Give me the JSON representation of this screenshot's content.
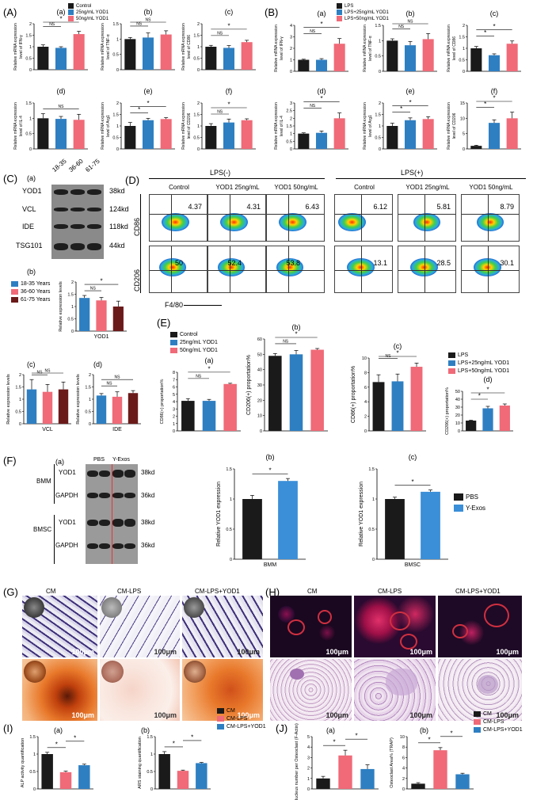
{
  "colors": {
    "black": "#1a1a1a",
    "blue": "#2e7fc2",
    "pink": "#f06a78",
    "maroon": "#6b1a1a",
    "blueLight": "#3a8fd8"
  },
  "panelA": {
    "label": "(A)",
    "legend": [
      "Control",
      "25ng/mL YOD1",
      "50ng/mL YOD1"
    ],
    "subs": [
      "(a)",
      "(b)",
      "(c)",
      "(d)",
      "(e)",
      "(f)"
    ],
    "ylabels": [
      "Relative mRNA expression level of IFN-γ",
      "Relative mRNA expression level of TNF-α",
      "Relative mRNA expression level of CD86",
      "Relative mRNA expression level of IL-4",
      "Relative mRNA expression level of Arg1",
      "Relative mRNA expression level of CD206"
    ]
  },
  "panelB": {
    "label": "(B)",
    "legend": [
      "LPS",
      "LPS+25ng/mL YOD1",
      "LPS+50ng/mL YOD1"
    ],
    "subs": [
      "(a)",
      "(b)",
      "(c)",
      "(d)",
      "(e)",
      "(f)"
    ],
    "ylabels": [
      "Relative mRNA expression level of IFN-γ",
      "Relative mRNA expression level of TNF-α",
      "Relative mRNA expression level of CD86",
      "Relative mRNA expression level of IL-4",
      "Relative mRNA expression level of Arg1",
      "Relative mRNA expression level of CD206"
    ]
  },
  "panelC": {
    "label": "(C)",
    "sub_a": "(a)",
    "sub_b": "(b)",
    "sub_c": "(c)",
    "sub_d": "(d)",
    "lanes": [
      "18-35",
      "36-60",
      "61-75"
    ],
    "proteins": [
      "YOD1",
      "VCL",
      "IDE",
      "TSG101"
    ],
    "kd": [
      "38kd",
      "124kd",
      "118kd",
      "44kd"
    ],
    "legend": [
      "18-35 Years",
      "36-60 Years",
      "61-75 Years"
    ],
    "ylabel": "Relative expression levels",
    "xl_b": "YOD1",
    "xl_c": "VCL",
    "xl_d": "IDE"
  },
  "panelD": {
    "label": "(D)",
    "lps_neg": "LPS(-)",
    "lps_pos": "LPS(+)",
    "cols": [
      "Control",
      "YOD1 25ng/mL",
      "YOD1 50ng/mL",
      "Control",
      "YOD1 25ng/mL",
      "YOD1 50ng/mL"
    ],
    "row1": [
      "4.37",
      "4.31",
      "6.43",
      "6.12",
      "5.81",
      "8.79"
    ],
    "row2": [
      "50",
      "52.4",
      "53.8",
      "13.1",
      "28.5",
      "30.1"
    ],
    "y1": "CD86",
    "y2": "CD206",
    "x": "F4/80"
  },
  "panelE": {
    "label": "(E)",
    "subs": [
      "(a)",
      "(b)",
      "(c)",
      "(d)"
    ],
    "legend1": [
      "Control",
      "25ng/mL YOD1",
      "50ng/mL YOD1"
    ],
    "legend2": [
      "LPS",
      "LPS+25ng/mL YOD1",
      "LPS+50ng/mL YOD1"
    ],
    "ylabels": [
      "CD86(+) proportation%",
      "CD206(+) proportation%",
      "CD86(+) proportation%",
      "CD206(+) proportation%"
    ]
  },
  "panelF": {
    "label": "(F)",
    "sub_a": "(a)",
    "sub_b": "(b)",
    "sub_c": "(c)",
    "lanes": [
      "PBS",
      "Y-Exos"
    ],
    "cells": [
      "BMM",
      "BMSC"
    ],
    "proteins": [
      "YOD1",
      "GAPDH",
      "YOD1",
      "GAPDH"
    ],
    "kd": [
      "38kd",
      "36kd",
      "38kd",
      "36kd"
    ],
    "ylabel": "Relative YOD1 expression",
    "xl_b": "BMM",
    "xl_c": "BMSC",
    "legend": [
      "PBS",
      "Y-Exos"
    ]
  },
  "panelG": {
    "label": "(G)",
    "cols": [
      "CM",
      "CM-LPS",
      "CM-LPS+YOD1"
    ],
    "scale": "100μm"
  },
  "panelH": {
    "label": "(H)",
    "cols": [
      "CM",
      "CM-LPS",
      "CM-LPS+YOD1"
    ],
    "scale": "100μm"
  },
  "panelI": {
    "label": "(I)",
    "sub_a": "(a)",
    "sub_b": "(b)",
    "ylabels": [
      "ALP activity quantification",
      "ARS staining quantification"
    ],
    "legend": [
      "CM",
      "CM-LPS",
      "CM-LPS+YOD1"
    ]
  },
  "panelJ": {
    "label": "(J)",
    "sub_a": "(a)",
    "sub_b": "(b)",
    "ylabels": [
      "Nucleus number per Osteoclast (F-Actin)",
      "Osteoclast Area% (TRAP)"
    ],
    "legend": [
      "CM",
      "CM-LPS",
      "CM-LPS+YOD1"
    ]
  },
  "chart_data": [
    {
      "id": "A-a",
      "type": "bar",
      "categories": [
        "Control",
        "25ng/mL YOD1",
        "50ng/mL YOD1"
      ],
      "values": [
        1.0,
        0.95,
        1.55
      ],
      "errors": [
        0.08,
        0.05,
        0.12
      ],
      "ylim": [
        0,
        2.0
      ],
      "yticks": [
        0,
        0.5,
        1.0,
        1.5,
        2.0
      ],
      "sig": [
        [
          "NS",
          0,
          1
        ],
        [
          "*",
          0,
          2
        ]
      ]
    },
    {
      "id": "A-b",
      "type": "bar",
      "categories": [
        "Control",
        "25ng/mL YOD1",
        "50ng/mL YOD1"
      ],
      "values": [
        1.0,
        1.05,
        1.15
      ],
      "errors": [
        0.05,
        0.15,
        0.12
      ],
      "ylim": [
        0,
        1.5
      ],
      "yticks": [
        0,
        0.5,
        1.0,
        1.5
      ],
      "sig": [
        [
          "NS",
          0,
          1
        ],
        [
          "NS",
          0,
          2
        ]
      ]
    },
    {
      "id": "A-c",
      "type": "bar",
      "categories": [
        "Control",
        "25ng/mL YOD1",
        "50ng/mL YOD1"
      ],
      "values": [
        1.0,
        0.95,
        1.2
      ],
      "errors": [
        0.06,
        0.1,
        0.08
      ],
      "ylim": [
        0,
        2.0
      ],
      "yticks": [
        0,
        0.5,
        1.0,
        1.5,
        2.0
      ],
      "sig": [
        [
          "NS",
          0,
          1
        ],
        [
          "*",
          0,
          2
        ]
      ]
    },
    {
      "id": "A-d",
      "type": "bar",
      "categories": [
        "Control",
        "25ng/mL YOD1",
        "50ng/mL YOD1"
      ],
      "values": [
        1.0,
        0.98,
        0.95
      ],
      "errors": [
        0.15,
        0.08,
        0.18
      ],
      "ylim": [
        0,
        1.5
      ],
      "yticks": [
        0,
        0.5,
        1.0,
        1.5
      ],
      "sig": [
        [
          "NS",
          0,
          2
        ]
      ]
    },
    {
      "id": "A-e",
      "type": "bar",
      "categories": [
        "Control",
        "25ng/mL YOD1",
        "50ng/mL YOD1"
      ],
      "values": [
        1.0,
        1.25,
        1.3
      ],
      "errors": [
        0.15,
        0.08,
        0.06
      ],
      "ylim": [
        0,
        2.0
      ],
      "yticks": [
        0,
        0.5,
        1.0,
        1.5,
        2.0
      ],
      "sig": [
        [
          "*",
          0,
          1
        ],
        [
          "*",
          0,
          2
        ]
      ]
    },
    {
      "id": "A-f",
      "type": "bar",
      "categories": [
        "Control",
        "25ng/mL YOD1",
        "50ng/mL YOD1"
      ],
      "values": [
        1.0,
        1.15,
        1.25
      ],
      "errors": [
        0.1,
        0.15,
        0.06
      ],
      "ylim": [
        0,
        2.0
      ],
      "yticks": [
        0,
        0.5,
        1.0,
        1.5,
        2.0
      ],
      "sig": [
        [
          "NS",
          0,
          1
        ],
        [
          "*",
          0,
          2
        ]
      ]
    },
    {
      "id": "B-a",
      "type": "bar",
      "categories": [
        "LPS",
        "LPS+25ng/mL YOD1",
        "LPS+50ng/mL YOD1"
      ],
      "values": [
        1.0,
        1.0,
        2.4
      ],
      "errors": [
        0.05,
        0.1,
        0.45
      ],
      "ylim": [
        0,
        4
      ],
      "yticks": [
        0,
        1,
        2,
        3,
        4
      ],
      "sig": [
        [
          "NS",
          0,
          1
        ],
        [
          "*",
          0,
          2
        ]
      ]
    },
    {
      "id": "B-b",
      "type": "bar",
      "categories": [
        "LPS",
        "LPS+25ng/mL YOD1",
        "LPS+50ng/mL YOD1"
      ],
      "values": [
        1.0,
        0.85,
        1.05
      ],
      "errors": [
        0.06,
        0.12,
        0.18
      ],
      "ylim": [
        0,
        1.5
      ],
      "yticks": [
        0,
        0.5,
        1.0,
        1.5
      ],
      "sig": [
        [
          "NS",
          0,
          1
        ],
        [
          "NS",
          0,
          2
        ]
      ]
    },
    {
      "id": "B-c",
      "type": "bar",
      "categories": [
        "LPS",
        "LPS+25ng/mL YOD1",
        "LPS+50ng/mL YOD1"
      ],
      "values": [
        1.0,
        0.7,
        1.2
      ],
      "errors": [
        0.08,
        0.06,
        0.12
      ],
      "ylim": [
        0,
        2.0
      ],
      "yticks": [
        0,
        0.5,
        1.0,
        1.5,
        2.0
      ],
      "sig": [
        [
          "*",
          0,
          1
        ],
        [
          "*",
          0,
          2
        ]
      ]
    },
    {
      "id": "B-d",
      "type": "bar",
      "categories": [
        "LPS",
        "LPS+25ng/mL YOD1",
        "LPS+50ng/mL YOD1"
      ],
      "values": [
        1.0,
        1.05,
        2.0
      ],
      "errors": [
        0.05,
        0.12,
        0.35
      ],
      "ylim": [
        0,
        3
      ],
      "yticks": [
        0,
        0.5,
        1.0,
        1.5,
        2.0,
        2.5,
        3.0
      ],
      "sig": [
        [
          "NS",
          0,
          1
        ],
        [
          "*",
          0,
          2
        ]
      ]
    },
    {
      "id": "B-e",
      "type": "bar",
      "categories": [
        "LPS",
        "LPS+25ng/mL YOD1",
        "LPS+50ng/mL YOD1"
      ],
      "values": [
        1.0,
        1.25,
        1.3
      ],
      "errors": [
        0.12,
        0.1,
        0.1
      ],
      "ylim": [
        0,
        2.0
      ],
      "yticks": [
        0,
        0.5,
        1.0,
        1.5,
        2.0
      ],
      "sig": [
        [
          "*",
          0,
          1
        ],
        [
          "*",
          0,
          2
        ]
      ]
    },
    {
      "id": "B-f",
      "type": "bar",
      "categories": [
        "LPS",
        "LPS+25ng/mL YOD1",
        "LPS+50ng/mL YOD1"
      ],
      "values": [
        1.0,
        8.5,
        10.0
      ],
      "errors": [
        0.2,
        1.0,
        2.0
      ],
      "ylim": [
        0,
        15
      ],
      "yticks": [
        0,
        5,
        10,
        15
      ],
      "sig": [
        [
          "*",
          0,
          1
        ],
        [
          "*",
          0,
          2
        ]
      ]
    },
    {
      "id": "C-b",
      "type": "bar",
      "categories": [
        "18-35 Years",
        "36-60 Years",
        "61-75 Years"
      ],
      "values": [
        1.35,
        1.25,
        1.0
      ],
      "errors": [
        0.1,
        0.12,
        0.22
      ],
      "ylim": [
        0,
        2.0
      ],
      "yticks": [
        0,
        0.5,
        1.0,
        1.5,
        2.0
      ],
      "xlabel": "YOD1",
      "sig": [
        [
          "NS",
          0,
          1
        ],
        [
          "*",
          0,
          2
        ]
      ]
    },
    {
      "id": "C-c",
      "type": "bar",
      "categories": [
        "18-35 Years",
        "36-60 Years",
        "61-75 Years"
      ],
      "values": [
        1.4,
        1.3,
        1.4
      ],
      "errors": [
        0.4,
        0.3,
        0.3
      ],
      "ylim": [
        0,
        2.0
      ],
      "yticks": [
        0,
        0.5,
        1.0,
        1.5,
        2.0
      ],
      "xlabel": "VCL",
      "sig": [
        [
          "NS",
          0,
          1
        ],
        [
          "NS",
          0,
          2
        ]
      ]
    },
    {
      "id": "C-d",
      "type": "bar",
      "categories": [
        "18-35 Years",
        "36-60 Years",
        "61-75 Years"
      ],
      "values": [
        1.15,
        1.1,
        1.25
      ],
      "errors": [
        0.08,
        0.2,
        0.1
      ],
      "ylim": [
        0,
        2.0
      ],
      "yticks": [
        0,
        0.5,
        1.0,
        1.5,
        2.0
      ],
      "xlabel": "IDE",
      "sig": [
        [
          "NS",
          0,
          1
        ],
        [
          "NS",
          0,
          2
        ]
      ]
    },
    {
      "id": "E-a",
      "type": "bar",
      "categories": [
        "Control",
        "25ng/mL YOD1",
        "50ng/mL YOD1"
      ],
      "values": [
        4.1,
        4.1,
        6.4
      ],
      "errors": [
        0.3,
        0.2,
        0.1
      ],
      "ylim": [
        0,
        8
      ],
      "yticks": [
        0,
        1,
        2,
        3,
        4,
        5,
        6,
        7,
        8
      ],
      "sig": [
        [
          "NS",
          0,
          1
        ],
        [
          "*",
          0,
          2
        ]
      ]
    },
    {
      "id": "E-b",
      "type": "bar",
      "categories": [
        "Control",
        "25ng/mL YOD1",
        "50ng/mL YOD1"
      ],
      "values": [
        49,
        50,
        53
      ],
      "errors": [
        1.5,
        2.5,
        0.8
      ],
      "ylim": [
        0,
        60
      ],
      "yticks": [
        0,
        10,
        20,
        30,
        40,
        50,
        60
      ],
      "sig": [
        [
          "NS",
          0,
          1
        ],
        [
          "*",
          0,
          2
        ]
      ]
    },
    {
      "id": "E-c",
      "type": "bar",
      "categories": [
        "LPS",
        "LPS+25ng/mL YOD1",
        "LPS+50ng/mL YOD1"
      ],
      "values": [
        6.7,
        6.8,
        8.8
      ],
      "errors": [
        1.0,
        1.0,
        0.5
      ],
      "ylim": [
        0,
        10
      ],
      "yticks": [
        0,
        2,
        4,
        6,
        8,
        10
      ],
      "sig": [
        [
          "NS",
          0,
          1
        ],
        [
          "*",
          0,
          2
        ]
      ]
    },
    {
      "id": "E-d",
      "type": "bar",
      "categories": [
        "LPS",
        "LPS+25ng/mL YOD1",
        "LPS+50ng/mL YOD1"
      ],
      "values": [
        13,
        28.5,
        32
      ],
      "errors": [
        0.5,
        2.5,
        2.0
      ],
      "ylim": [
        0,
        50
      ],
      "yticks": [
        0,
        10,
        20,
        30,
        40,
        50
      ],
      "sig": [
        [
          "*",
          0,
          1
        ],
        [
          "*",
          0,
          2
        ]
      ]
    },
    {
      "id": "F-b",
      "type": "bar",
      "categories": [
        "PBS",
        "Y-Exos"
      ],
      "values": [
        1.0,
        1.3
      ],
      "errors": [
        0.06,
        0.04
      ],
      "ylim": [
        0,
        1.5
      ],
      "yticks": [
        0,
        0.5,
        1.0,
        1.5
      ],
      "xlabel": "BMM",
      "sig": [
        [
          "*",
          0,
          1
        ]
      ]
    },
    {
      "id": "F-c",
      "type": "bar",
      "categories": [
        "PBS",
        "Y-Exos"
      ],
      "values": [
        1.0,
        1.12
      ],
      "errors": [
        0.03,
        0.03
      ],
      "ylim": [
        0,
        1.5
      ],
      "yticks": [
        0,
        0.5,
        1.0,
        1.5
      ],
      "xlabel": "BMSC",
      "sig": [
        [
          "*",
          0,
          1
        ]
      ]
    },
    {
      "id": "I-a",
      "type": "bar",
      "categories": [
        "CM",
        "CM-LPS",
        "CM-LPS+YOD1"
      ],
      "values": [
        1.0,
        0.48,
        0.68
      ],
      "errors": [
        0.05,
        0.03,
        0.03
      ],
      "ylim": [
        0,
        1.5
      ],
      "yticks": [
        0,
        0.5,
        1.0,
        1.5
      ],
      "sig": [
        [
          "*",
          0,
          1
        ],
        [
          "*",
          1,
          2
        ]
      ]
    },
    {
      "id": "I-b",
      "type": "bar",
      "categories": [
        "CM",
        "CM-LPS",
        "CM-LPS+YOD1"
      ],
      "values": [
        1.0,
        0.52,
        0.74
      ],
      "errors": [
        0.07,
        0.02,
        0.02
      ],
      "ylim": [
        0,
        1.5
      ],
      "yticks": [
        0,
        0.5,
        1.0,
        1.5
      ],
      "sig": [
        [
          "*",
          0,
          1
        ],
        [
          "*",
          1,
          2
        ]
      ]
    },
    {
      "id": "J-a",
      "type": "bar",
      "categories": [
        "CM",
        "CM-LPS",
        "CM-LPS+YOD1"
      ],
      "values": [
        1.0,
        3.2,
        1.9
      ],
      "errors": [
        0.2,
        0.5,
        0.4
      ],
      "ylim": [
        0,
        5
      ],
      "yticks": [
        0,
        1,
        2,
        3,
        4,
        5
      ],
      "sig": [
        [
          "*",
          0,
          1
        ],
        [
          "*",
          1,
          2
        ]
      ]
    },
    {
      "id": "J-b",
      "type": "bar",
      "categories": [
        "CM",
        "CM-LPS",
        "CM-LPS+YOD1"
      ],
      "values": [
        1.0,
        7.4,
        2.8
      ],
      "errors": [
        0.2,
        0.5,
        0.2
      ],
      "ylim": [
        0,
        10
      ],
      "yticks": [
        0,
        2,
        4,
        6,
        8,
        10
      ],
      "sig": [
        [
          "*",
          0,
          1
        ],
        [
          "*",
          1,
          2
        ]
      ]
    }
  ]
}
